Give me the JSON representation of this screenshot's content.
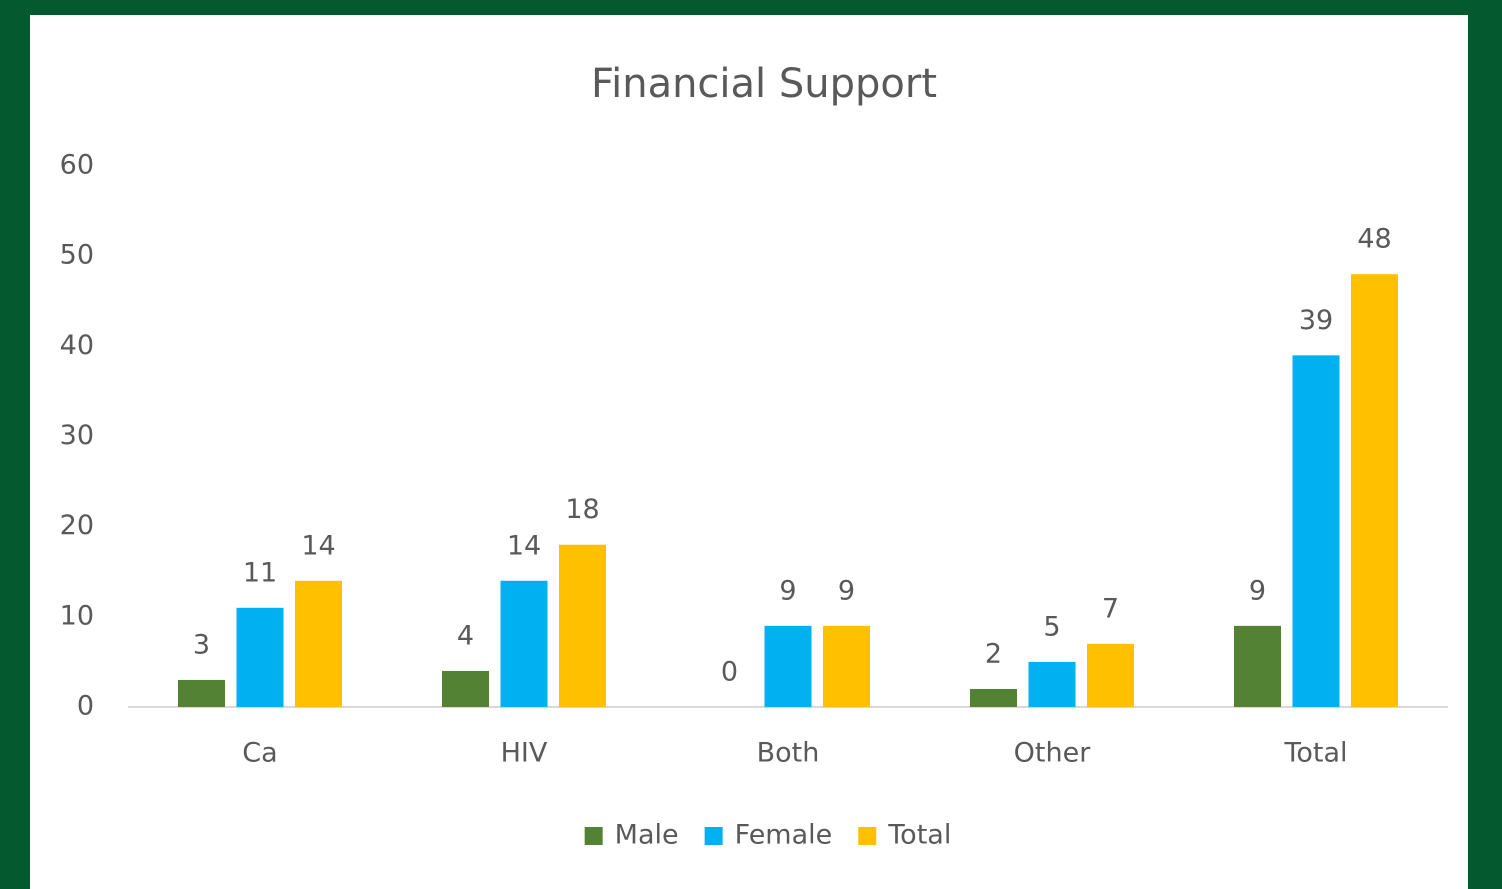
{
  "chart_data": {
    "type": "bar",
    "title": "Financial Support",
    "categories": [
      "Ca",
      "HIV",
      "Both",
      "Other",
      "Total"
    ],
    "series": [
      {
        "name": "Male",
        "color": "#548235",
        "values": [
          3,
          4,
          0,
          2,
          9
        ]
      },
      {
        "name": "Female",
        "color": "#00b0f0",
        "values": [
          11,
          14,
          9,
          5,
          39
        ]
      },
      {
        "name": "Total",
        "color": "#ffc000",
        "values": [
          14,
          18,
          9,
          7,
          48
        ]
      }
    ],
    "ylim": [
      0,
      60
    ],
    "yticks": [
      0,
      10,
      20,
      30,
      40,
      50,
      60
    ],
    "grid": false,
    "legend": "bottom"
  }
}
